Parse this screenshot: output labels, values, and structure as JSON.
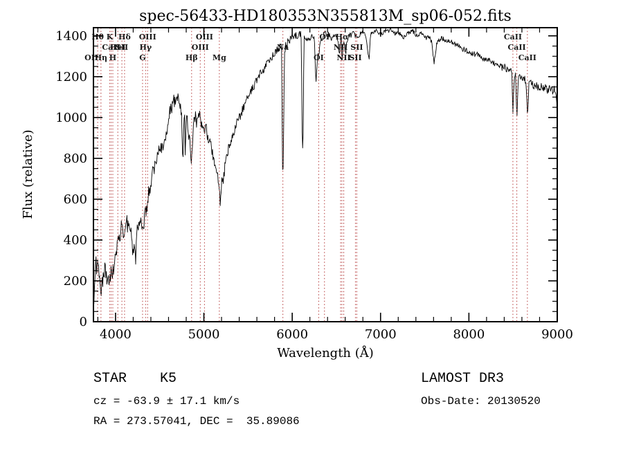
{
  "title": "spec-56433-HD180353N355813M_sp06-052.fits",
  "colors": {
    "background": "#ffffff",
    "axis": "#000000",
    "spectrum": "#000000",
    "marker_line": "#bb4a4a",
    "marker_label": "#1a1a1a"
  },
  "footer": {
    "class_label": "STAR    K5",
    "survey": "LAMOST DR3",
    "cz": "cz = -63.9 ± 17.1 km/s",
    "obs_date": "Obs-Date: 20130520",
    "radec": "RA = 273.57041, DEC =  35.89086"
  },
  "chart_data": {
    "type": "line",
    "title": "spec-56433-HD180353N355813M_sp06-052.fits",
    "xlabel": "Wavelength (Å)",
    "ylabel": "Flux (relative)",
    "xlim": [
      3750,
      9000
    ],
    "ylim": [
      0,
      1440
    ],
    "xticks": [
      4000,
      5000,
      6000,
      7000,
      8000,
      9000
    ],
    "yticks": [
      0,
      200,
      400,
      600,
      800,
      1000,
      1200,
      1400
    ],
    "x_minor_step": 200,
    "y_minor_step": 50,
    "grid": false,
    "legend": "none",
    "noise_seed": 987654321,
    "line_markers": [
      {
        "label": "OII",
        "wavelength": 3727,
        "row": 3
      },
      {
        "label": "Hθ",
        "wavelength": 3798,
        "row": 1
      },
      {
        "label": "Hη",
        "wavelength": 3835,
        "row": 3
      },
      {
        "label": "K",
        "wavelength": 3934,
        "row": 1
      },
      {
        "label": "H",
        "wavelength": 3969,
        "row": 3
      },
      {
        "label": "CaII",
        "wavelength": 3950,
        "row": 2
      },
      {
        "label": "HeI",
        "wavelength": 4026,
        "row": 2
      },
      {
        "label": "SII",
        "wavelength": 4072,
        "row": 2
      },
      {
        "label": "Hδ",
        "wavelength": 4102,
        "row": 1
      },
      {
        "label": "G",
        "wavelength": 4306,
        "row": 3
      },
      {
        "label": "Hγ",
        "wavelength": 4340,
        "row": 2
      },
      {
        "label": "OIII",
        "wavelength": 4363,
        "row": 1
      },
      {
        "label": "Hβ",
        "wavelength": 4861,
        "row": 3
      },
      {
        "label": "OIII",
        "wavelength": 4959,
        "row": 2
      },
      {
        "label": "OIII",
        "wavelength": 5007,
        "row": 1
      },
      {
        "label": "Mg",
        "wavelength": 5175,
        "row": 3
      },
      {
        "label": "Na",
        "wavelength": 5894,
        "row": 2
      },
      {
        "label": "OI",
        "wavelength": 6300,
        "row": 3
      },
      {
        "label": "OI",
        "wavelength": 6365,
        "row": 1
      },
      {
        "label": "NII",
        "wavelength": 6548,
        "row": 2
      },
      {
        "label": "Hα",
        "wavelength": 6563,
        "row": 1
      },
      {
        "label": "NII",
        "wavelength": 6583,
        "row": 3
      },
      {
        "label": "SII",
        "wavelength": 6716,
        "row": 3
      },
      {
        "label": "SII",
        "wavelength": 6731,
        "row": 2
      },
      {
        "label": "CaII",
        "wavelength": 8498,
        "row": 1
      },
      {
        "label": "CaII",
        "wavelength": 8542,
        "row": 2
      },
      {
        "label": "CaII",
        "wavelength": 8662,
        "row": 3
      }
    ],
    "envelope_points": [
      [
        3750,
        40
      ],
      [
        3756,
        130
      ],
      [
        3762,
        230
      ],
      [
        3768,
        160
      ],
      [
        3774,
        280
      ],
      [
        3780,
        340
      ],
      [
        3786,
        220
      ],
      [
        3792,
        300
      ],
      [
        3798,
        330
      ],
      [
        3804,
        260
      ],
      [
        3812,
        200
      ],
      [
        3820,
        175
      ],
      [
        3828,
        215
      ],
      [
        3836,
        160
      ],
      [
        3844,
        150
      ],
      [
        3852,
        180
      ],
      [
        3860,
        240
      ],
      [
        3868,
        275
      ],
      [
        3876,
        235
      ],
      [
        3884,
        255
      ],
      [
        3892,
        225
      ],
      [
        3900,
        195
      ],
      [
        3910,
        215
      ],
      [
        3920,
        240
      ],
      [
        3930,
        210
      ],
      [
        3940,
        235
      ],
      [
        3950,
        275
      ],
      [
        3960,
        255
      ],
      [
        3970,
        235
      ],
      [
        3980,
        285
      ],
      [
        3990,
        315
      ],
      [
        4000,
        295
      ],
      [
        4012,
        340
      ],
      [
        4024,
        415
      ],
      [
        4036,
        380
      ],
      [
        4048,
        420
      ],
      [
        4060,
        455
      ],
      [
        4072,
        480
      ],
      [
        4084,
        430
      ],
      [
        4096,
        425
      ],
      [
        4108,
        480
      ],
      [
        4120,
        525
      ],
      [
        4132,
        485
      ],
      [
        4144,
        460
      ],
      [
        4156,
        505
      ],
      [
        4168,
        475
      ],
      [
        4180,
        420
      ],
      [
        4192,
        330
      ],
      [
        4204,
        360
      ],
      [
        4216,
        340
      ],
      [
        4228,
        320
      ],
      [
        4240,
        420
      ],
      [
        4252,
        470
      ],
      [
        4264,
        505
      ],
      [
        4276,
        490
      ],
      [
        4288,
        525
      ],
      [
        4300,
        485
      ],
      [
        4312,
        470
      ],
      [
        4324,
        500
      ],
      [
        4336,
        525
      ],
      [
        4348,
        550
      ],
      [
        4360,
        585
      ],
      [
        4375,
        625
      ],
      [
        4390,
        660
      ],
      [
        4405,
        690
      ],
      [
        4420,
        720
      ],
      [
        4440,
        765
      ],
      [
        4460,
        800
      ],
      [
        4480,
        825
      ],
      [
        4500,
        860
      ],
      [
        4515,
        875
      ],
      [
        4530,
        840
      ],
      [
        4545,
        870
      ],
      [
        4560,
        905
      ],
      [
        4580,
        945
      ],
      [
        4600,
        1000
      ],
      [
        4615,
        1025
      ],
      [
        4630,
        1045
      ],
      [
        4645,
        1060
      ],
      [
        4660,
        1085
      ],
      [
        4675,
        1070
      ],
      [
        4690,
        1095
      ],
      [
        4705,
        1110
      ],
      [
        4720,
        1065
      ],
      [
        4735,
        1045
      ],
      [
        4750,
        1000
      ],
      [
        4758,
        830
      ],
      [
        4764,
        780
      ],
      [
        4772,
        990
      ],
      [
        4782,
        1030
      ],
      [
        4789,
        780
      ],
      [
        4796,
        960
      ],
      [
        4806,
        1010
      ],
      [
        4816,
        970
      ],
      [
        4826,
        915
      ],
      [
        4836,
        935
      ],
      [
        4846,
        870
      ],
      [
        4855,
        810
      ],
      [
        4861,
        775
      ],
      [
        4868,
        840
      ],
      [
        4878,
        955
      ],
      [
        4890,
        995
      ],
      [
        4905,
        1005
      ],
      [
        4920,
        975
      ],
      [
        4935,
        995
      ],
      [
        4950,
        1015
      ],
      [
        4965,
        985
      ],
      [
        4980,
        960
      ],
      [
        4995,
        940
      ],
      [
        5010,
        930
      ],
      [
        5025,
        945
      ],
      [
        5040,
        915
      ],
      [
        5055,
        900
      ],
      [
        5070,
        875
      ],
      [
        5085,
        845
      ],
      [
        5100,
        815
      ],
      [
        5115,
        785
      ],
      [
        5130,
        755
      ],
      [
        5145,
        725
      ],
      [
        5160,
        700
      ],
      [
        5172,
        680
      ],
      [
        5181,
        610
      ],
      [
        5187,
        575
      ],
      [
        5194,
        645
      ],
      [
        5202,
        680
      ],
      [
        5212,
        668
      ],
      [
        5222,
        700
      ],
      [
        5232,
        740
      ],
      [
        5246,
        778
      ],
      [
        5260,
        808
      ],
      [
        5280,
        848
      ],
      [
        5300,
        880
      ],
      [
        5320,
        908
      ],
      [
        5340,
        930
      ],
      [
        5360,
        952
      ],
      [
        5380,
        975
      ],
      [
        5400,
        998
      ],
      [
        5425,
        1028
      ],
      [
        5450,
        1055
      ],
      [
        5475,
        1080
      ],
      [
        5500,
        1102
      ],
      [
        5525,
        1124
      ],
      [
        5550,
        1144
      ],
      [
        5575,
        1164
      ],
      [
        5600,
        1184
      ],
      [
        5625,
        1203
      ],
      [
        5650,
        1222
      ],
      [
        5675,
        1238
      ],
      [
        5700,
        1254
      ],
      [
        5725,
        1269
      ],
      [
        5750,
        1284
      ],
      [
        5775,
        1299
      ],
      [
        5800,
        1314
      ],
      [
        5825,
        1328
      ],
      [
        5850,
        1342
      ],
      [
        5868,
        1352
      ],
      [
        5882,
        1335
      ],
      [
        5888,
        760
      ],
      [
        5893,
        700
      ],
      [
        5899,
        790
      ],
      [
        5906,
        1080
      ],
      [
        5913,
        1320
      ],
      [
        5926,
        1350
      ],
      [
        5942,
        1364
      ],
      [
        5960,
        1375
      ],
      [
        5980,
        1384
      ],
      [
        6000,
        1390
      ],
      [
        6025,
        1396
      ],
      [
        6050,
        1400
      ],
      [
        6075,
        1404
      ],
      [
        6100,
        1407
      ],
      [
        6109,
        1120
      ],
      [
        6114,
        860
      ],
      [
        6118,
        838
      ],
      [
        6123,
        885
      ],
      [
        6129,
        1190
      ],
      [
        6136,
        1392
      ],
      [
        6152,
        1399
      ],
      [
        6170,
        1390
      ],
      [
        6190,
        1396
      ],
      [
        6210,
        1386
      ],
      [
        6230,
        1392
      ],
      [
        6250,
        1380
      ],
      [
        6262,
        1255
      ],
      [
        6271,
        1162
      ],
      [
        6280,
        1245
      ],
      [
        6291,
        1338
      ],
      [
        6301,
        1302
      ],
      [
        6310,
        1360
      ],
      [
        6325,
        1382
      ],
      [
        6345,
        1396
      ],
      [
        6365,
        1406
      ],
      [
        6385,
        1412
      ],
      [
        6405,
        1416
      ],
      [
        6425,
        1400
      ],
      [
        6445,
        1386
      ],
      [
        6465,
        1400
      ],
      [
        6485,
        1406
      ],
      [
        6505,
        1394
      ],
      [
        6521,
        1372
      ],
      [
        6534,
        1302
      ],
      [
        6546,
        1372
      ],
      [
        6557,
        1392
      ],
      [
        6564,
        1252
      ],
      [
        6572,
        1362
      ],
      [
        6582,
        1382
      ],
      [
        6592,
        1342
      ],
      [
        6606,
        1302
      ],
      [
        6617,
        1372
      ],
      [
        6632,
        1392
      ],
      [
        6652,
        1402
      ],
      [
        6672,
        1407
      ],
      [
        6692,
        1412
      ],
      [
        6712,
        1402
      ],
      [
        6732,
        1396
      ],
      [
        6755,
        1402
      ],
      [
        6778,
        1412
      ],
      [
        6800,
        1418
      ],
      [
        6825,
        1414
      ],
      [
        6848,
        1362
      ],
      [
        6862,
        1302
      ],
      [
        6871,
        1290
      ],
      [
        6880,
        1362
      ],
      [
        6892,
        1406
      ],
      [
        6915,
        1416
      ],
      [
        6938,
        1422
      ],
      [
        6960,
        1426
      ],
      [
        6985,
        1414
      ],
      [
        7010,
        1408
      ],
      [
        7035,
        1420
      ],
      [
        7060,
        1426
      ],
      [
        7085,
        1420
      ],
      [
        7110,
        1428
      ],
      [
        7135,
        1420
      ],
      [
        7160,
        1410
      ],
      [
        7185,
        1416
      ],
      [
        7210,
        1414
      ],
      [
        7235,
        1404
      ],
      [
        7260,
        1394
      ],
      [
        7285,
        1402
      ],
      [
        7310,
        1412
      ],
      [
        7335,
        1420
      ],
      [
        7360,
        1424
      ],
      [
        7385,
        1414
      ],
      [
        7410,
        1402
      ],
      [
        7435,
        1406
      ],
      [
        7460,
        1410
      ],
      [
        7485,
        1398
      ],
      [
        7510,
        1388
      ],
      [
        7535,
        1392
      ],
      [
        7560,
        1394
      ],
      [
        7580,
        1368
      ],
      [
        7593,
        1312
      ],
      [
        7606,
        1268
      ],
      [
        7618,
        1292
      ],
      [
        7632,
        1358
      ],
      [
        7655,
        1380
      ],
      [
        7680,
        1386
      ],
      [
        7705,
        1388
      ],
      [
        7730,
        1378
      ],
      [
        7755,
        1370
      ],
      [
        7780,
        1376
      ],
      [
        7805,
        1368
      ],
      [
        7830,
        1362
      ],
      [
        7855,
        1356
      ],
      [
        7880,
        1350
      ],
      [
        7905,
        1343
      ],
      [
        7930,
        1337
      ],
      [
        7955,
        1330
      ],
      [
        7980,
        1324
      ],
      [
        8005,
        1326
      ],
      [
        8030,
        1316
      ],
      [
        8055,
        1310
      ],
      [
        8080,
        1314
      ],
      [
        8105,
        1303
      ],
      [
        8130,
        1297
      ],
      [
        8155,
        1290
      ],
      [
        8180,
        1284
      ],
      [
        8205,
        1287
      ],
      [
        8230,
        1276
      ],
      [
        8255,
        1270
      ],
      [
        8280,
        1264
      ],
      [
        8305,
        1268
      ],
      [
        8330,
        1256
      ],
      [
        8355,
        1250
      ],
      [
        8380,
        1244
      ],
      [
        8405,
        1247
      ],
      [
        8430,
        1236
      ],
      [
        8455,
        1230
      ],
      [
        8472,
        1234
      ],
      [
        8486,
        1224
      ],
      [
        8494,
        1090
      ],
      [
        8498,
        1030
      ],
      [
        8504,
        1095
      ],
      [
        8514,
        1208
      ],
      [
        8528,
        1214
      ],
      [
        8537,
        1090
      ],
      [
        8542,
        960
      ],
      [
        8549,
        1085
      ],
      [
        8560,
        1194
      ],
      [
        8577,
        1200
      ],
      [
        8594,
        1205
      ],
      [
        8610,
        1194
      ],
      [
        8626,
        1189
      ],
      [
        8642,
        1182
      ],
      [
        8654,
        1140
      ],
      [
        8659,
        1040
      ],
      [
        8663,
        1000
      ],
      [
        8670,
        1075
      ],
      [
        8680,
        1168
      ],
      [
        8698,
        1174
      ],
      [
        8716,
        1163
      ],
      [
        8736,
        1154
      ],
      [
        8756,
        1162
      ],
      [
        8776,
        1149
      ],
      [
        8796,
        1143
      ],
      [
        8816,
        1152
      ],
      [
        8836,
        1139
      ],
      [
        8856,
        1154
      ],
      [
        8876,
        1143
      ],
      [
        8896,
        1133
      ],
      [
        8916,
        1148
      ],
      [
        8936,
        1137
      ],
      [
        8956,
        1127
      ],
      [
        8972,
        1142
      ],
      [
        8986,
        1115
      ],
      [
        8994,
        1080
      ],
      [
        8998,
        950
      ],
      [
        9000,
        830
      ]
    ],
    "noise_profile": [
      [
        3750,
        55
      ],
      [
        3950,
        48
      ],
      [
        4150,
        45
      ],
      [
        4400,
        40
      ],
      [
        4650,
        33
      ],
      [
        4900,
        30
      ],
      [
        5150,
        28
      ],
      [
        5400,
        25
      ],
      [
        5650,
        22
      ],
      [
        5900,
        20
      ],
      [
        6150,
        18
      ],
      [
        6400,
        16
      ],
      [
        6700,
        13
      ],
      [
        7000,
        11
      ],
      [
        7400,
        11
      ],
      [
        7800,
        13
      ],
      [
        8200,
        15
      ],
      [
        8600,
        17
      ],
      [
        9000,
        22
      ]
    ]
  }
}
